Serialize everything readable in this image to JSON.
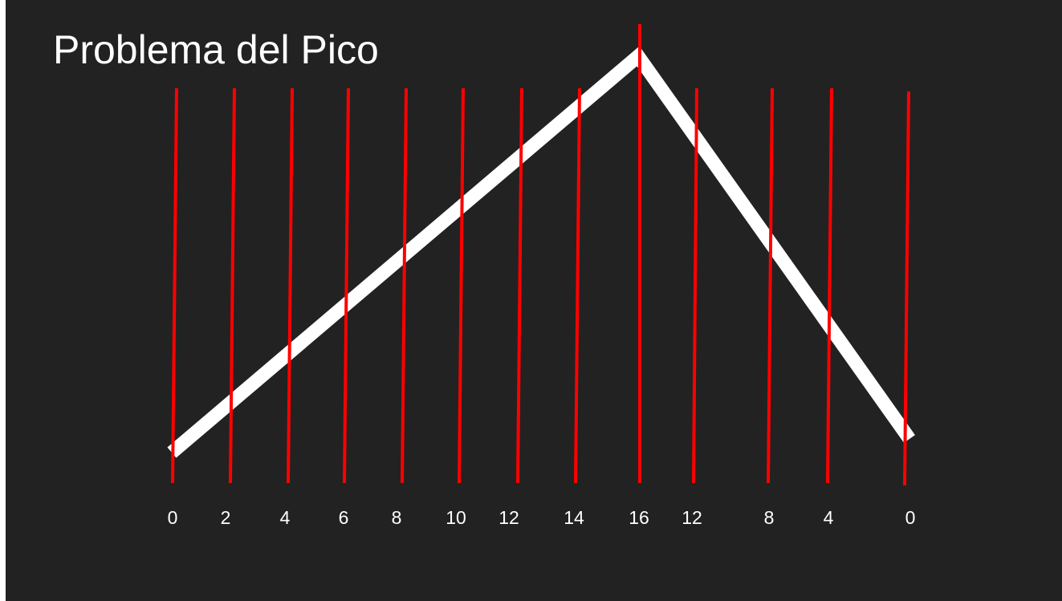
{
  "slide": {
    "title": "Problema del Pico"
  },
  "colors": {
    "background": "#222222",
    "peak_line": "#ffffff",
    "sample_lines": "#ff0000",
    "text": "#ffffff"
  },
  "sample_labels": [
    "0",
    "2",
    "4",
    "6",
    "8",
    "10",
    "12",
    "14",
    "16",
    "12",
    "8",
    "4",
    "0"
  ]
}
